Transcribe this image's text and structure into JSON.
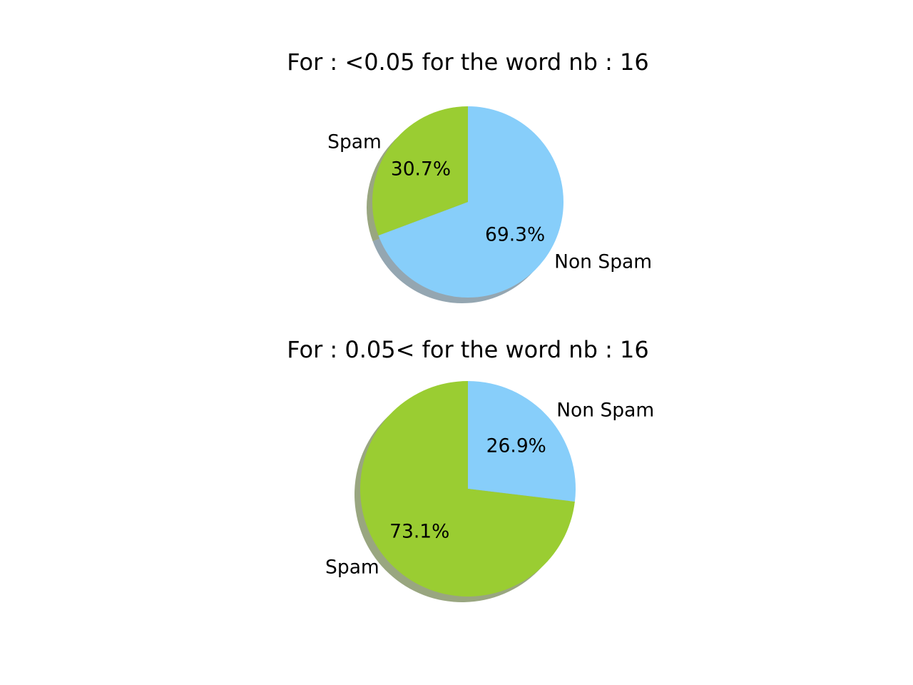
{
  "chart_data": [
    {
      "type": "pie",
      "title": "For : <0.05 for the word nb : 16",
      "slices": [
        {
          "label": "Non Spam",
          "value": 69.3,
          "pct_label": "69.3%",
          "color": "#87CEFA"
        },
        {
          "label": "Spam",
          "value": 30.7,
          "pct_label": "30.7%",
          "color": "#9ACD32"
        }
      ],
      "start_angle_deg": 90,
      "direction": "clockwise",
      "shadow": true
    },
    {
      "type": "pie",
      "title": "For : 0.05< for the word nb : 16",
      "slices": [
        {
          "label": "Non Spam",
          "value": 26.9,
          "pct_label": "26.9%",
          "color": "#87CEFA"
        },
        {
          "label": "Spam",
          "value": 73.1,
          "pct_label": "73.1%",
          "color": "#9ACD32"
        }
      ],
      "start_angle_deg": 90,
      "direction": "clockwise",
      "shadow": true
    }
  ]
}
